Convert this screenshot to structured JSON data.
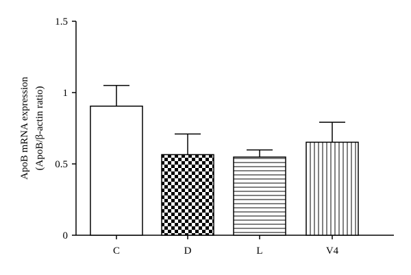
{
  "chart_data": {
    "type": "bar",
    "categories": [
      "C",
      "D",
      "L",
      "V4"
    ],
    "values": [
      0.905,
      0.565,
      0.548,
      0.652
    ],
    "errors": [
      0.145,
      0.145,
      0.05,
      0.14
    ],
    "patterns": [
      "blank",
      "checker",
      "horizontal-lines",
      "vertical-lines"
    ],
    "ylabel_line1": "ApoB mRNA expression",
    "ylabel_line2": "(ApoB/β-actin ratio)",
    "ylim": [
      0,
      1.5
    ],
    "yticks": [
      0,
      0.5,
      1,
      1.5
    ],
    "ytick_labels": [
      "0",
      "0.5",
      "1",
      "1.5"
    ],
    "grid": false,
    "legend": "none"
  }
}
